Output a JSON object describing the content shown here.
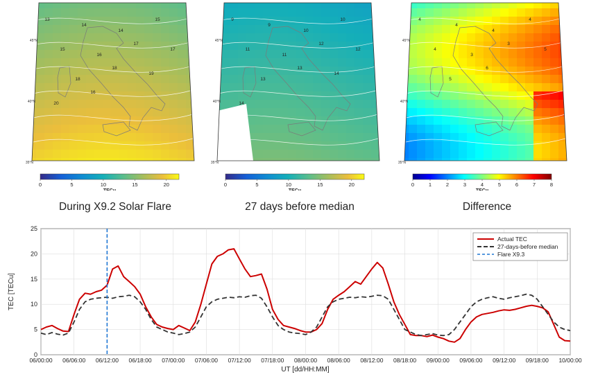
{
  "maps": [
    {
      "caption": "During X9.2 Solar Flare",
      "colorbar": {
        "label": "TECu",
        "ticks": [
          "0",
          "5",
          "10",
          "15",
          "20"
        ],
        "min": 0,
        "max": 22
      },
      "lat_labels": [
        "45°N",
        "40°N",
        "35°N"
      ],
      "contour_labels": [
        "13",
        "14",
        "14",
        "15",
        "15",
        "16",
        "17",
        "17",
        "18",
        "18",
        "19",
        "20",
        "16"
      ],
      "field_range": [
        13,
        20
      ],
      "colormap": "parula"
    },
    {
      "caption": "27 days before median",
      "colorbar": {
        "label": "TECu",
        "ticks": [
          "0",
          "5",
          "10",
          "15",
          "20"
        ],
        "min": 0,
        "max": 22
      },
      "lat_labels": [
        "45°N",
        "40°N",
        "35°N"
      ],
      "contour_labels": [
        "9",
        "9",
        "10",
        "10",
        "11",
        "11",
        "12",
        "12",
        "13",
        "13",
        "14",
        "14"
      ],
      "field_range": [
        9,
        14
      ],
      "colormap": "parula"
    },
    {
      "caption": "Difference",
      "colorbar": {
        "label": "TECu",
        "ticks": [
          "0",
          "1",
          "2",
          "3",
          "4",
          "5",
          "6",
          "7",
          "8"
        ],
        "min": 0,
        "max": 8
      },
      "lat_labels": [
        "45°N",
        "40°N",
        "35°N"
      ],
      "contour_labels": [
        "4",
        "4",
        "4",
        "4",
        "4",
        "3",
        "3",
        "5",
        "5",
        "6"
      ],
      "field_range": [
        2,
        7
      ],
      "colormap": "jet"
    }
  ],
  "chart_data": {
    "type": "line",
    "xlabel": "UT [dd/HH:MM]",
    "ylabel": "TEC [TECu]",
    "x_tick_labels": [
      "06/00:00",
      "06/06:00",
      "06/12:00",
      "06/18:00",
      "07/00:00",
      "07/06:00",
      "07/12:00",
      "07/18:00",
      "08/00:00",
      "08/06:00",
      "08/12:00",
      "08/18:00",
      "09/00:00",
      "09/06:00",
      "09/12:00",
      "09/18:00",
      "10/00:00"
    ],
    "xlim_hours": [
      0,
      96
    ],
    "ylim": [
      0,
      25
    ],
    "y_ticks": [
      0,
      5,
      10,
      15,
      20,
      25
    ],
    "grid": true,
    "legend_position": "top-right",
    "flare_marker_hour": 12,
    "series": [
      {
        "name": "Actual TEC",
        "color": "#cc0000",
        "style": "solid",
        "x": [
          0,
          1,
          2,
          3,
          4,
          5,
          6,
          7,
          8,
          9,
          10,
          11,
          12,
          13,
          14,
          15,
          16,
          17,
          18,
          19,
          20,
          21,
          22,
          23,
          24,
          25,
          26,
          27,
          28,
          29,
          30,
          31,
          32,
          33,
          34,
          35,
          36,
          37,
          38,
          39,
          40,
          41,
          42,
          43,
          44,
          45,
          46,
          47,
          48,
          49,
          50,
          51,
          52,
          53,
          54,
          55,
          56,
          57,
          58,
          59,
          60,
          61,
          62,
          63,
          64,
          65,
          66,
          67,
          68,
          69,
          70,
          71,
          72,
          73,
          74,
          75,
          76,
          77,
          78,
          79,
          80,
          81,
          82,
          83,
          84,
          85,
          86,
          87,
          88,
          89,
          90,
          91,
          92,
          93,
          94,
          95,
          96
        ],
        "y": [
          5.0,
          5.5,
          5.8,
          5.2,
          4.7,
          4.6,
          8.0,
          11.0,
          12.2,
          12.0,
          12.5,
          12.8,
          13.8,
          17.0,
          17.6,
          15.5,
          14.5,
          13.5,
          12.0,
          9.5,
          7.5,
          6.0,
          5.5,
          5.2,
          5.0,
          5.8,
          5.3,
          4.8,
          6.5,
          10.0,
          14.0,
          18.0,
          19.5,
          20.0,
          20.8,
          21.0,
          19.0,
          17.0,
          15.5,
          15.7,
          16.0,
          13.0,
          9.0,
          7.0,
          5.8,
          5.5,
          5.2,
          4.8,
          4.5,
          4.5,
          5.0,
          6.2,
          9.0,
          11.0,
          11.8,
          12.5,
          13.5,
          14.5,
          14.0,
          15.5,
          17.0,
          18.3,
          17.2,
          14.0,
          10.5,
          8.0,
          6.0,
          4.0,
          3.8,
          3.8,
          3.6,
          3.9,
          3.5,
          3.2,
          2.7,
          2.5,
          3.2,
          5.0,
          6.5,
          7.5,
          8.0,
          8.2,
          8.4,
          8.7,
          8.9,
          8.8,
          9.0,
          9.3,
          9.6,
          9.8,
          9.6,
          9.3,
          8.5,
          6.0,
          3.5,
          2.8,
          2.7
        ]
      },
      {
        "name": "27-days-before median",
        "color": "#333333",
        "style": "dashed",
        "x": [
          0,
          1,
          2,
          3,
          4,
          5,
          6,
          7,
          8,
          9,
          10,
          11,
          12,
          13,
          14,
          15,
          16,
          17,
          18,
          19,
          20,
          21,
          22,
          23,
          24,
          25,
          26,
          27,
          28,
          29,
          30,
          31,
          32,
          33,
          34,
          35,
          36,
          37,
          38,
          39,
          40,
          41,
          42,
          43,
          44,
          45,
          46,
          47,
          48,
          49,
          50,
          51,
          52,
          53,
          54,
          55,
          56,
          57,
          58,
          59,
          60,
          61,
          62,
          63,
          64,
          65,
          66,
          67,
          68,
          69,
          70,
          71,
          72,
          73,
          74,
          75,
          76,
          77,
          78,
          79,
          80,
          81,
          82,
          83,
          84,
          85,
          86,
          87,
          88,
          89,
          90,
          91,
          92,
          93,
          94,
          95,
          96
        ],
        "y": [
          4.3,
          4.0,
          4.4,
          4.1,
          3.9,
          4.3,
          6.5,
          9.0,
          10.5,
          11.0,
          11.2,
          11.3,
          11.4,
          11.2,
          11.5,
          11.6,
          11.8,
          11.5,
          10.5,
          9.0,
          7.0,
          5.5,
          5.0,
          4.5,
          4.3,
          4.0,
          4.2,
          4.5,
          5.5,
          7.5,
          9.5,
          10.5,
          11.0,
          11.2,
          11.4,
          11.3,
          11.5,
          11.4,
          11.7,
          11.8,
          11.2,
          9.5,
          7.5,
          5.8,
          5.0,
          4.5,
          4.3,
          4.2,
          4.0,
          4.5,
          5.5,
          7.5,
          9.5,
          10.5,
          11.0,
          11.2,
          11.4,
          11.3,
          11.5,
          11.4,
          11.6,
          11.8,
          11.7,
          11.0,
          9.0,
          7.0,
          5.0,
          4.5,
          4.0,
          3.8,
          4.0,
          4.2,
          3.9,
          3.8,
          4.0,
          5.0,
          6.5,
          8.0,
          9.5,
          10.5,
          11.0,
          11.3,
          11.5,
          11.2,
          11.0,
          11.3,
          11.5,
          11.7,
          12.0,
          11.8,
          11.0,
          9.5,
          8.0,
          6.5,
          5.5,
          5.0,
          4.8
        ]
      },
      {
        "name": "Flare X9.3",
        "color": "#1f77d4",
        "style": "dashed"
      }
    ]
  }
}
